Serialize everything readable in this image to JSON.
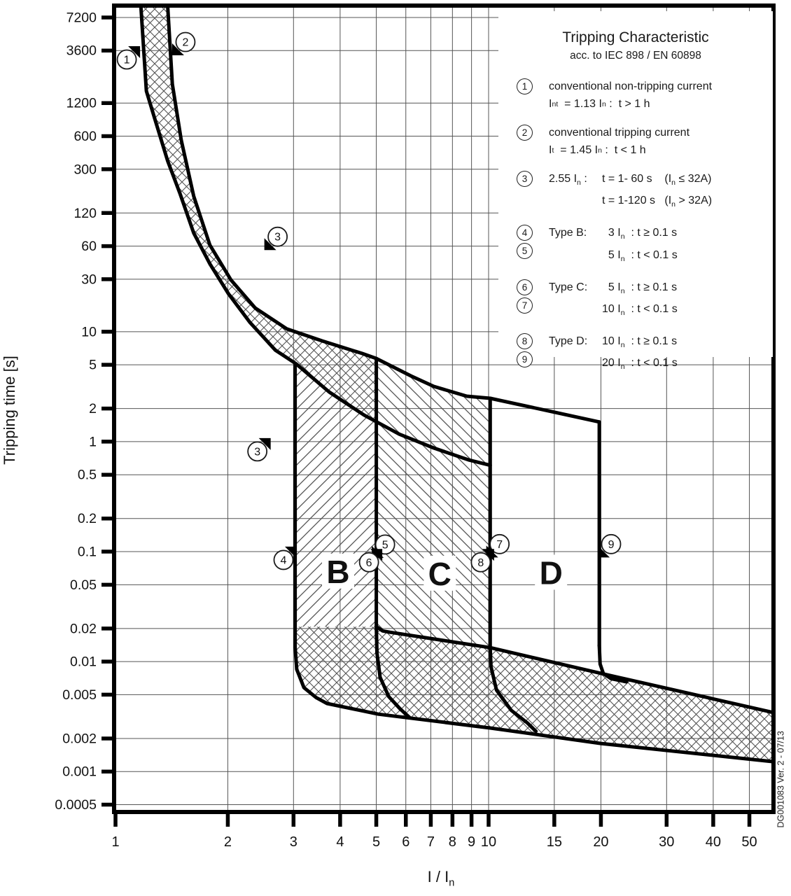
{
  "legend": {
    "title": "Tripping Characteristic",
    "subtitle": "acc. to IEC 898 / EN 60898",
    "items": [
      {
        "num": "1",
        "text": "conventional non-tripping current",
        "formula": "I_nt_  = 1.13 I_n_ :  t > 1 h"
      },
      {
        "num": "2",
        "text": "conventional tripping current",
        "formula": "I_t_  = 1.45 I_n_ :  t < 1 h"
      },
      {
        "num": "3",
        "label": "2.55 I_n_ :",
        "line1": "t = 1- 60 s    (I_n_ ≤ 32A)",
        "line2": "t = 1-120 s   (I_n_ > 32A)"
      },
      {
        "num": "4",
        "num2": "5",
        "label": "Type B:",
        "line1": "  3 I_n_  : t ≥ 0.1 s",
        "line2": "  5 I_n_  : t < 0.1 s"
      },
      {
        "num": "6",
        "num2": "7",
        "label": "Type C:",
        "line1": "  5 I_n_  : t ≥ 0.1 s",
        "line2": "10 I_n_  : t < 0.1 s"
      },
      {
        "num": "8",
        "num2": "9",
        "label": "Type D:",
        "line1": "10 I_n_  : t ≥ 0.1 s",
        "line2": "20 I_n_  : t < 0.1 s"
      }
    ]
  },
  "chart_data": {
    "type": "line",
    "title": "Tripping Characteristic acc. to IEC 898 / EN 60898",
    "xlabel": "I / I_n_",
    "ylabel": "Tripping time [s]",
    "x_log": true,
    "y_log": true,
    "grid": true,
    "x_range": [
      1,
      58
    ],
    "y_range": [
      0.00043,
      9200
    ],
    "x_ticks": [
      [
        1,
        "1"
      ],
      [
        2,
        "2"
      ],
      [
        3,
        "3"
      ],
      [
        4,
        "4"
      ],
      [
        5,
        "5"
      ],
      [
        6,
        "6"
      ],
      [
        7,
        "7"
      ],
      [
        8,
        "8"
      ],
      [
        9,
        "9"
      ],
      [
        10,
        "10"
      ],
      [
        15,
        "15"
      ],
      [
        20,
        "20"
      ],
      [
        30,
        "30"
      ],
      [
        40,
        "40"
      ],
      [
        50,
        "50"
      ]
    ],
    "y_ticks": [
      [
        7200,
        "7200"
      ],
      [
        3600,
        "3600"
      ],
      [
        1200,
        "1200"
      ],
      [
        600,
        "600"
      ],
      [
        300,
        "300"
      ],
      [
        120,
        "120"
      ],
      [
        60,
        "60"
      ],
      [
        30,
        "30"
      ],
      [
        10,
        "10"
      ],
      [
        5,
        "5"
      ],
      [
        2,
        "2"
      ],
      [
        1,
        "1"
      ],
      [
        0.5,
        "0.5"
      ],
      [
        0.2,
        "0.2"
      ],
      [
        0.1,
        "0.1"
      ],
      [
        0.05,
        "0.05"
      ],
      [
        0.02,
        "0.02"
      ],
      [
        0.01,
        "0.01"
      ],
      [
        0.005,
        "0.005"
      ],
      [
        0.002,
        "0.002"
      ],
      [
        0.001,
        "0.001"
      ],
      [
        0.0005,
        "0.0005"
      ]
    ],
    "curves": [
      {
        "name": "thermal-lower-1.13In",
        "pts": [
          [
            1.17,
            9000
          ],
          [
            1.21,
            1545
          ],
          [
            1.28,
            822
          ],
          [
            1.38,
            356
          ],
          [
            1.49,
            179
          ],
          [
            1.62,
            79
          ],
          [
            1.79,
            41.4
          ],
          [
            2.01,
            22
          ],
          [
            2.29,
            12.2
          ],
          [
            2.68,
            6.8
          ],
          [
            3.05,
            5.1
          ],
          [
            3.74,
            2.83
          ],
          [
            4.64,
            1.74
          ],
          [
            5.76,
            1.17
          ],
          [
            7.13,
            0.875
          ],
          [
            8.87,
            0.68
          ],
          [
            10.1,
            0.61
          ]
        ]
      },
      {
        "name": "thermal-upper-1.45In",
        "pts": [
          [
            1.38,
            9000
          ],
          [
            1.42,
            1786
          ],
          [
            1.5,
            553
          ],
          [
            1.62,
            171
          ],
          [
            1.79,
            61.4
          ],
          [
            2.04,
            29.5
          ],
          [
            2.37,
            16.4
          ],
          [
            2.88,
            10.6
          ],
          [
            3.58,
            8.24
          ],
          [
            4.58,
            6.34
          ],
          [
            5.0,
            5.71
          ],
          [
            6.19,
            3.96
          ],
          [
            7.13,
            3.18
          ],
          [
            8.74,
            2.59
          ],
          [
            10.1,
            2.48
          ]
        ]
      },
      {
        "name": "typeD-upper",
        "pts": [
          [
            10.1,
            2.48
          ],
          [
            14.2,
            1.93
          ],
          [
            19.8,
            1.51
          ]
        ]
      },
      {
        "name": "typeB-left-and-lower",
        "pts": [
          [
            3.03,
            5.1
          ],
          [
            3.03,
            0.0135
          ],
          [
            3.06,
            0.0085
          ],
          [
            3.2,
            0.0058
          ],
          [
            3.45,
            0.0047
          ],
          [
            3.69,
            0.00416
          ],
          [
            5.06,
            0.00333
          ],
          [
            10.1,
            0.00249
          ],
          [
            20,
            0.0018
          ],
          [
            58,
            0.00123
          ]
        ]
      },
      {
        "name": "typeC-left",
        "pts": [
          [
            5.0,
            5.71
          ],
          [
            5.0,
            0.0208
          ]
        ]
      },
      {
        "name": "instant-band-upper",
        "pts": [
          [
            5.0,
            0.0208
          ],
          [
            5.2,
            0.019
          ],
          [
            5.44,
            0.0185
          ],
          [
            10.1,
            0.0134
          ],
          [
            21.2,
            0.00746
          ],
          [
            58,
            0.00344
          ]
        ]
      },
      {
        "name": "typeC-left-lower-arc",
        "pts": [
          [
            5.0,
            0.0208
          ],
          [
            5.02,
            0.012
          ],
          [
            5.12,
            0.0072
          ],
          [
            5.4,
            0.0048
          ],
          [
            5.8,
            0.0037
          ],
          [
            6.14,
            0.0031
          ]
        ]
      },
      {
        "name": "typeC-right",
        "pts": [
          [
            10.1,
            2.48
          ],
          [
            10.1,
            0.0134
          ]
        ]
      },
      {
        "name": "typeC-right-lower-arc",
        "pts": [
          [
            10.1,
            0.0134
          ],
          [
            10.15,
            0.009
          ],
          [
            10.5,
            0.0055
          ],
          [
            11.5,
            0.0036
          ],
          [
            12.7,
            0.00277
          ],
          [
            13.4,
            0.00232
          ]
        ]
      },
      {
        "name": "typeD-right",
        "pts": [
          [
            19.8,
            1.51
          ],
          [
            19.8,
            0.014
          ]
        ]
      },
      {
        "name": "typeD-right-arc",
        "pts": [
          [
            19.8,
            0.014
          ],
          [
            19.9,
            0.0095
          ],
          [
            20.3,
            0.0078
          ],
          [
            21.3,
            0.007
          ],
          [
            23.4,
            0.00655
          ]
        ]
      }
    ],
    "regions": [
      {
        "name": "thermal-band",
        "pattern": "cross",
        "pts": [
          [
            1.17,
            9000
          ],
          [
            1.21,
            1545
          ],
          [
            1.28,
            822
          ],
          [
            1.38,
            356
          ],
          [
            1.49,
            179
          ],
          [
            1.62,
            79
          ],
          [
            1.79,
            41.4
          ],
          [
            2.01,
            22
          ],
          [
            2.29,
            12.2
          ],
          [
            2.68,
            6.8
          ],
          [
            3.05,
            5.1
          ],
          [
            3.74,
            2.83
          ],
          [
            4.64,
            1.74
          ],
          [
            5.0,
            1.55
          ],
          [
            5.0,
            5.71
          ],
          [
            4.58,
            6.34
          ],
          [
            3.58,
            8.24
          ],
          [
            2.88,
            10.6
          ],
          [
            2.37,
            16.4
          ],
          [
            2.04,
            29.5
          ],
          [
            1.79,
            61.4
          ],
          [
            1.62,
            171
          ],
          [
            1.5,
            553
          ],
          [
            1.42,
            1786
          ],
          [
            1.38,
            9000
          ]
        ]
      },
      {
        "name": "typeB-region",
        "pattern": "diag1",
        "pts": [
          [
            3.03,
            5.1
          ],
          [
            3.74,
            2.83
          ],
          [
            4.64,
            1.74
          ],
          [
            5.0,
            1.55
          ],
          [
            5.0,
            0.0208
          ],
          [
            3.03,
            0.0208
          ]
        ]
      },
      {
        "name": "typeC-region",
        "pattern": "diag2",
        "pts": [
          [
            5.0,
            5.71
          ],
          [
            6.19,
            3.96
          ],
          [
            7.13,
            3.18
          ],
          [
            8.74,
            2.59
          ],
          [
            10.1,
            2.48
          ],
          [
            10.1,
            0.0134
          ],
          [
            5.44,
            0.0185
          ],
          [
            5.2,
            0.019
          ],
          [
            5.0,
            0.0208
          ]
        ]
      },
      {
        "name": "instant-band",
        "pattern": "cross",
        "pts": [
          [
            3.03,
            0.0208
          ],
          [
            5.0,
            0.0208
          ],
          [
            5.44,
            0.0185
          ],
          [
            10.1,
            0.0134
          ],
          [
            21.2,
            0.00746
          ],
          [
            58,
            0.00344
          ],
          [
            58,
            0.00123
          ],
          [
            20,
            0.0018
          ],
          [
            10.1,
            0.00249
          ],
          [
            5.06,
            0.00333
          ],
          [
            3.69,
            0.00416
          ],
          [
            3.45,
            0.0047
          ],
          [
            3.2,
            0.0058
          ],
          [
            3.06,
            0.0085
          ],
          [
            3.03,
            0.0135
          ]
        ]
      }
    ],
    "markers": [
      {
        "n": "1",
        "x": 1.072,
        "t": 2985,
        "w": "ne"
      },
      {
        "n": "2",
        "x": 1.54,
        "t": 4305,
        "w": "sw"
      },
      {
        "n": "3",
        "x": 2.72,
        "t": 73,
        "w": "sw"
      },
      {
        "n": "3",
        "x": 2.4,
        "t": 0.815,
        "w": "ne"
      },
      {
        "n": "4",
        "x": 2.82,
        "t": 0.084,
        "w": "ne"
      },
      {
        "n": "5",
        "x": 5.28,
        "t": 0.116,
        "w": "sw"
      },
      {
        "n": "6",
        "x": 4.78,
        "t": 0.08,
        "w": "ne"
      },
      {
        "n": "7",
        "x": 10.7,
        "t": 0.117,
        "w": "sw"
      },
      {
        "n": "8",
        "x": 9.53,
        "t": 0.08,
        "w": "ne"
      },
      {
        "n": "9",
        "x": 21.3,
        "t": 0.117,
        "w": "sw"
      }
    ],
    "region_labels": [
      {
        "text": "B",
        "x": 3.95,
        "t": 0.0655
      },
      {
        "text": "C",
        "x": 7.4,
        "t": 0.0627
      },
      {
        "text": "D",
        "x": 14.7,
        "t": 0.064
      }
    ],
    "doc_code": "DG001083 Ver. 2 - 07/13"
  }
}
